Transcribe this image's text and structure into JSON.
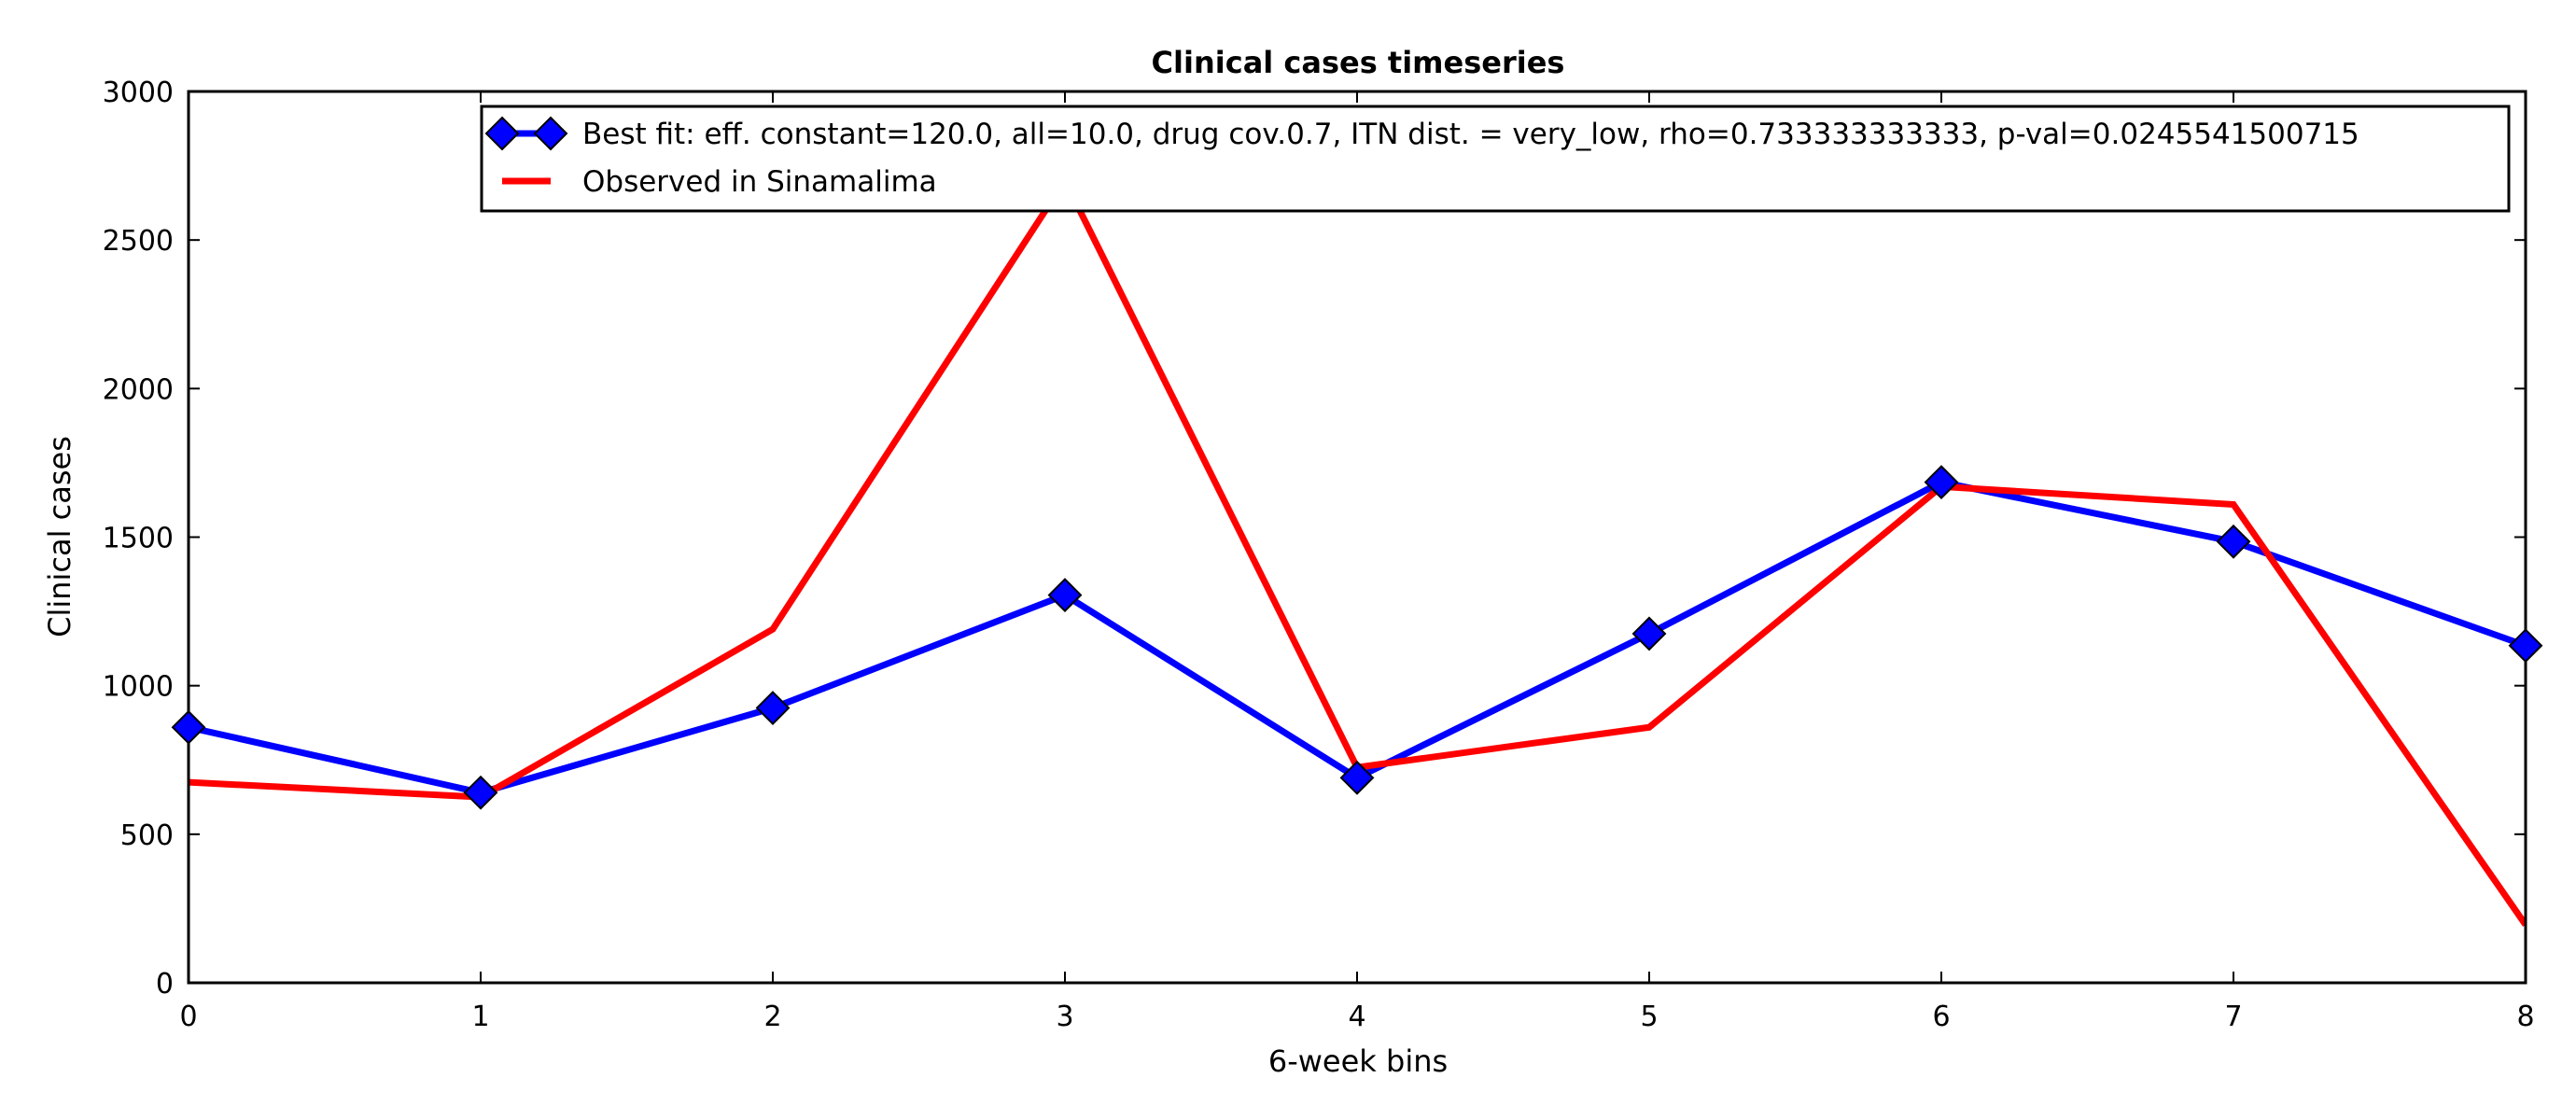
{
  "chart_data": {
    "type": "line",
    "title": "Clinical cases timeseries",
    "xlabel": "6-week bins",
    "ylabel": "Clinical cases",
    "x": [
      0,
      1,
      2,
      3,
      4,
      5,
      6,
      7,
      8
    ],
    "xlim": [
      0,
      8
    ],
    "ylim": [
      0,
      3000
    ],
    "xticks": [
      "0",
      "1",
      "2",
      "3",
      "4",
      "5",
      "6",
      "7",
      "8"
    ],
    "yticks": [
      "0",
      "500",
      "1000",
      "1500",
      "2000",
      "2500",
      "3000"
    ],
    "grid": false,
    "legend_position": "top-right",
    "series": [
      {
        "name": "Best fit: eff. constant=120.0, all=10.0, drug cov.0.7, ITN dist. = very_low, rho=0.733333333333, p-val=0.0245541500715",
        "values": [
          860,
          640,
          925,
          1305,
          690,
          1175,
          1685,
          1485,
          1135
        ],
        "color": "#0000ff",
        "marker": "diamond"
      },
      {
        "name": "Observed in Sinamalima",
        "values": [
          675,
          625,
          1190,
          2700,
          725,
          860,
          1670,
          1610,
          195
        ],
        "color": "#ff0000",
        "marker": "none"
      }
    ]
  }
}
